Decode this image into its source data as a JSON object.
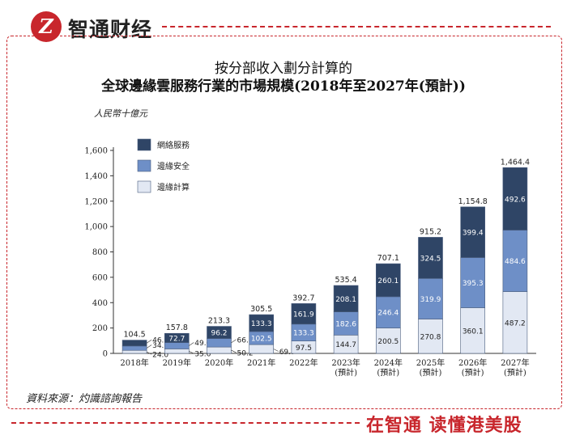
{
  "brand": {
    "logo_glyph": "Z",
    "name": "智通财经",
    "slogan": "在智通 读懂港美股"
  },
  "colors": {
    "accent": "#c8262c",
    "edge": "#2f4566",
    "security": "#6e8fc7",
    "compute": "#e2e8f3"
  },
  "chart_data": {
    "type": "bar",
    "stacked": true,
    "title": "按分部收入劃分計算的",
    "subtitle": "全球邊緣雲服務行業的市場規模(2018年至2027年(預計))",
    "ylabel": "人民幣十億元",
    "ylim": [
      0,
      1600
    ],
    "yticks": [
      "0",
      "200",
      "400",
      "600",
      "800",
      "1,000",
      "1,200",
      "1,400",
      "1,600"
    ],
    "categories": [
      "2018年",
      "2019年",
      "2020年",
      "2021年",
      "2022年",
      "2023年\n(預計)",
      "2024年\n(預計)",
      "2025年\n(預計)",
      "2026年\n(預計)",
      "2027年\n(預計)"
    ],
    "series": [
      {
        "name": "邊緣計算",
        "values": [
          24.0,
          35.6,
          50.2,
          69.7,
          97.5,
          144.7,
          200.5,
          270.8,
          360.1,
          487.2
        ],
        "labels": [
          "24.0",
          "35.6",
          "50.2",
          "69.7",
          "97.5",
          "144.7",
          "200.5",
          "270.8",
          "360.1",
          "487.2"
        ]
      },
      {
        "name": "邊緣安全",
        "values": [
          34.2,
          49.6,
          66.8,
          102.5,
          133.3,
          182.6,
          246.4,
          319.9,
          395.3,
          484.6
        ],
        "labels": [
          "34.2",
          "49.6",
          "66.8",
          "102.5",
          "133.3",
          "182.6",
          "246.4",
          "319.9",
          "395.3",
          "484.6"
        ]
      },
      {
        "name": "網絡服務",
        "values": [
          46.3,
          72.7,
          96.2,
          133.3,
          161.9,
          208.1,
          260.1,
          324.5,
          399.4,
          492.6
        ],
        "labels": [
          "46.3",
          "72.7",
          "96.2",
          "133.3",
          "161.9",
          "208.1",
          "260.1",
          "324.5",
          "399.4",
          "492.6"
        ]
      }
    ],
    "totals": [
      104.5,
      157.8,
      213.3,
      305.5,
      392.7,
      535.4,
      707.1,
      915.2,
      1154.8,
      1464.4
    ],
    "total_labels": [
      "104.5",
      "157.8",
      "213.3",
      "305.5",
      "392.7",
      "535.4",
      "707.1",
      "915.2",
      "1,154.8",
      "1,464.4"
    ],
    "legend": [
      "網絡服務",
      "邊緣安全",
      "邊緣計算"
    ],
    "legend_position": "top-left"
  },
  "source": "資料來源：灼識諮詢報告"
}
